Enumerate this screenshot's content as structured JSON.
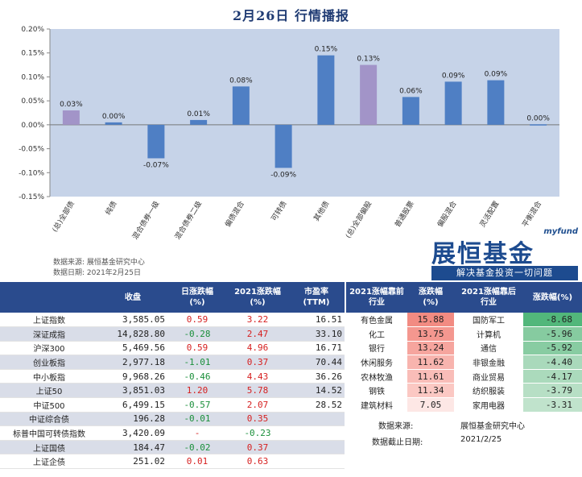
{
  "title": "2月26日   行情播报",
  "chart_data": {
    "type": "bar",
    "categories": [
      "(总)全部债",
      "纯债",
      "混合债券一级",
      "混合债券二级",
      "偏债混合",
      "可转债",
      "其他债",
      "(总)全部偏股",
      "普通股票",
      "偏股混合",
      "灵活配置",
      "平衡混合"
    ],
    "values": [
      0.03,
      0.005,
      -0.07,
      0.01,
      0.08,
      -0.09,
      0.145,
      0.125,
      0.058,
      0.09,
      0.093,
      0.001
    ],
    "data_labels": [
      "0.03%",
      "0.00%",
      "-0.07%",
      "0.01%",
      "0.08%",
      "-0.09%",
      "0.15%",
      "0.13%",
      "0.06%",
      "0.09%",
      "0.09%",
      "0.00%"
    ],
    "bar_colors": [
      "#a294c8",
      "#4f7fc4",
      "#4f7fc4",
      "#4f7fc4",
      "#4f7fc4",
      "#4f7fc4",
      "#4f7fc4",
      "#a294c8",
      "#4f7fc4",
      "#4f7fc4",
      "#4f7fc4",
      "#4f7fc4"
    ],
    "yticks": [
      "0.20%",
      "0.15%",
      "0.10%",
      "0.05%",
      "0.00%",
      "-0.05%",
      "-0.10%",
      "-0.15%"
    ],
    "ylim": [
      -0.15,
      0.2
    ],
    "grid": false
  },
  "source_note": "数据来源: 展恒基金研究中心",
  "date_note": "数据日期: 2021年2月25日",
  "brand": {
    "small": "myfund",
    "main": "展恒基金",
    "tagline": "解决基金投资一切问题"
  },
  "left_table": {
    "headers": [
      "",
      "收盘",
      "日涨跌幅\n(%)",
      "2021涨跌幅\n(%)",
      "市盈率\n(TTM)"
    ],
    "rows": [
      {
        "name": "上证指数",
        "close": "3,585.05",
        "day": "0.59",
        "ytd": "3.22",
        "pe": "16.51",
        "dayDir": "up",
        "ytdDir": "up"
      },
      {
        "name": "深证成指",
        "close": "14,828.80",
        "day": "-0.28",
        "ytd": "2.47",
        "pe": "33.10",
        "dayDir": "down",
        "ytdDir": "up"
      },
      {
        "name": "沪深300",
        "close": "5,469.56",
        "day": "0.59",
        "ytd": "4.96",
        "pe": "16.71",
        "dayDir": "up",
        "ytdDir": "up"
      },
      {
        "name": "创业板指",
        "close": "2,977.18",
        "day": "-1.01",
        "ytd": "0.37",
        "pe": "70.44",
        "dayDir": "down",
        "ytdDir": "up"
      },
      {
        "name": "中小板指",
        "close": "9,968.26",
        "day": "-0.46",
        "ytd": "4.43",
        "pe": "36.26",
        "dayDir": "down",
        "ytdDir": "up"
      },
      {
        "name": "上证50",
        "close": "3,851.03",
        "day": "1.20",
        "ytd": "5.78",
        "pe": "14.52",
        "dayDir": "up",
        "ytdDir": "up"
      },
      {
        "name": "中证500",
        "close": "6,499.15",
        "day": "-0.57",
        "ytd": "2.07",
        "pe": "28.52",
        "dayDir": "down",
        "ytdDir": "up"
      },
      {
        "name": "中证综合债",
        "close": "196.28",
        "day": "-0.01",
        "ytd": "0.35",
        "pe": "",
        "dayDir": "down",
        "ytdDir": "up"
      },
      {
        "name": "标普中国可转债指数",
        "close": "3,420.09",
        "day": "-",
        "ytd": "-0.23",
        "pe": "",
        "dayDir": "up",
        "ytdDir": "down"
      },
      {
        "name": "上证国债",
        "close": "184.47",
        "day": "-0.02",
        "ytd": "0.37",
        "pe": "",
        "dayDir": "down",
        "ytdDir": "up"
      },
      {
        "name": "上证企债",
        "close": "251.02",
        "day": "0.01",
        "ytd": "0.63",
        "pe": "",
        "dayDir": "up",
        "ytdDir": "up"
      }
    ]
  },
  "right_table": {
    "headers": [
      "2021涨幅靠前\n行业",
      "涨跌幅\n(%)",
      "2021涨幅靠后\n行业",
      "涨跌幅(%)"
    ],
    "rows": [
      {
        "top": "有色金属",
        "topVal": "15.88",
        "bot": "国防军工",
        "botVal": "-8.68"
      },
      {
        "top": "化工",
        "topVal": "13.75",
        "bot": "计算机",
        "botVal": "-5.96"
      },
      {
        "top": "银行",
        "topVal": "13.24",
        "bot": "通信",
        "botVal": "-5.92"
      },
      {
        "top": "休闲服务",
        "topVal": "11.62",
        "bot": "非银金融",
        "botVal": "-4.40"
      },
      {
        "top": "农林牧渔",
        "topVal": "11.61",
        "bot": "商业贸易",
        "botVal": "-4.17"
      },
      {
        "top": "钢铁",
        "topVal": "11.34",
        "bot": "纺织服装",
        "botVal": "-3.79"
      },
      {
        "top": "建筑材料",
        "topVal": "7.05",
        "bot": "家用电器",
        "botVal": "-3.31"
      }
    ],
    "top_colors": [
      "#f28b82",
      "#f4978f",
      "#f6a59e",
      "#f8b4ae",
      "#f9bdb8",
      "#fbc8c3",
      "#fde7e5"
    ],
    "bot_colors": [
      "#52b77b",
      "#86cba0",
      "#88cca2",
      "#a9d9bb",
      "#abdabc",
      "#b7dfc5",
      "#c0e3cc"
    ]
  },
  "footer": {
    "source_label": "数据来源:",
    "source_value": "展恒基金研究中心",
    "date_label": "数据截止日期:",
    "date_value": "2021/2/25"
  }
}
